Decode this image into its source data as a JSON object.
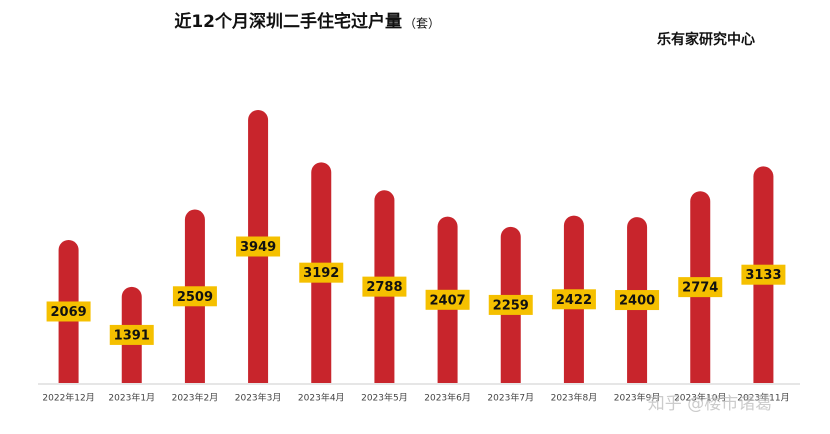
{
  "chart_data": {
    "type": "bar",
    "title": "近12个月深圳二手住宅过户量",
    "unit": "（套）",
    "source": "乐有家研究中心",
    "watermark": "知乎 @楼市诸葛",
    "categories": [
      "2022年12月",
      "2023年1月",
      "2023年2月",
      "2023年3月",
      "2023年4月",
      "2023年5月",
      "2023年6月",
      "2023年7月",
      "2023年8月",
      "2023年9月",
      "2023年10月",
      "2023年11月"
    ],
    "values": [
      2069,
      1391,
      2509,
      3949,
      3192,
      2788,
      2407,
      2259,
      2422,
      2400,
      2774,
      3133
    ],
    "color": "#c8252c",
    "label_color": "#f5c000"
  }
}
